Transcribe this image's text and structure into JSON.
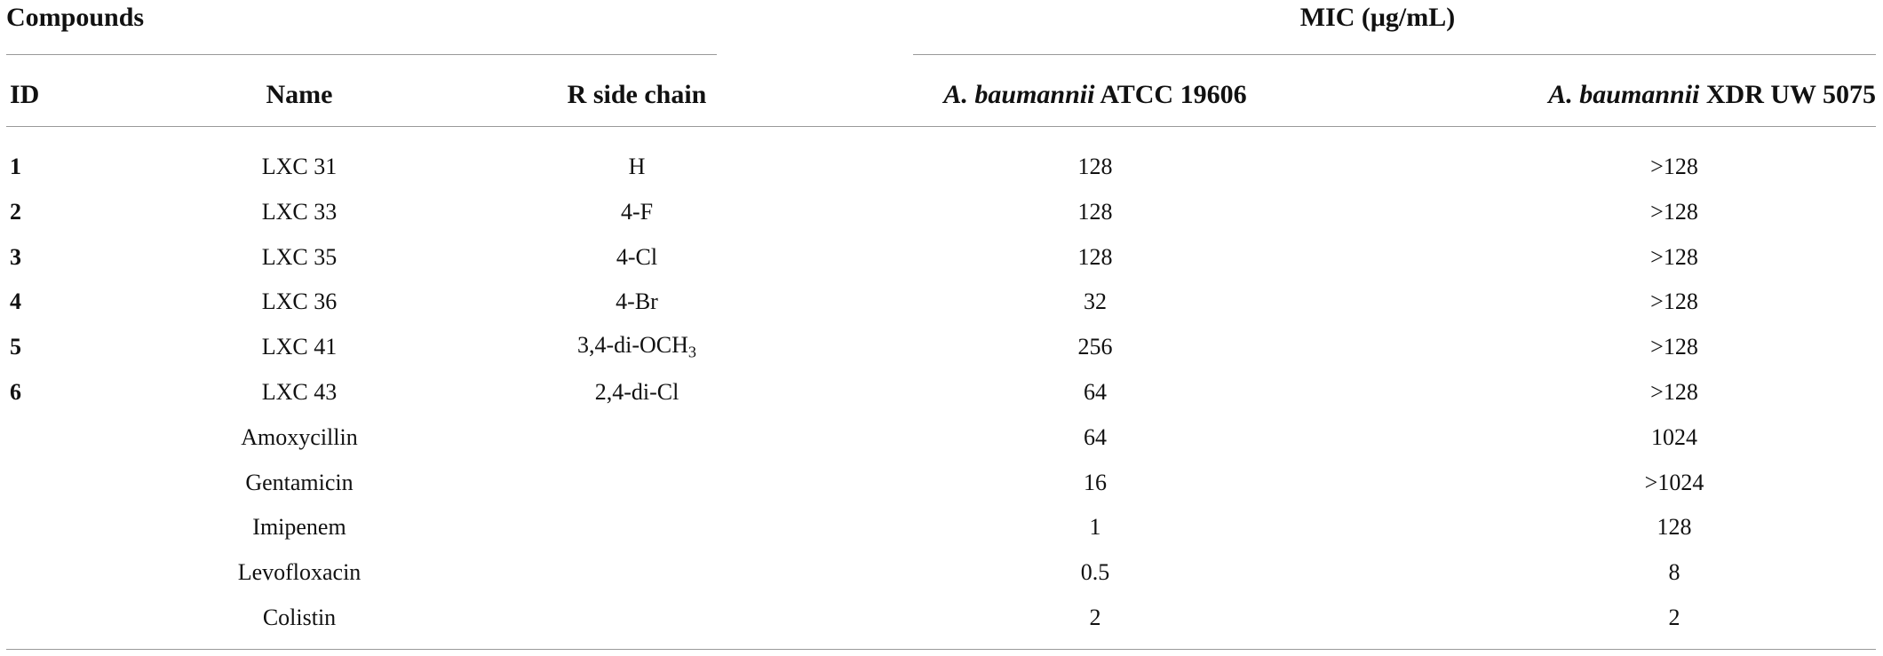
{
  "table": {
    "group_headers": [
      "Compounds",
      "MIC (μg/mL)"
    ],
    "headers": [
      "ID",
      "Name",
      "R side chain",
      {
        "italic": "A. baumannii",
        "text": " ATCC 19606"
      },
      {
        "italic": "A. baumannii",
        "text": " XDR UW 5075"
      }
    ],
    "rows": [
      {
        "id": "1",
        "name": "LXC 31",
        "r": "H",
        "atcc": "128",
        "xdr": ">128"
      },
      {
        "id": "2",
        "name": "LXC 33",
        "r": "4-F",
        "atcc": "128",
        "xdr": ">128"
      },
      {
        "id": "3",
        "name": "LXC 35",
        "r": "4-Cl",
        "atcc": "128",
        "xdr": ">128"
      },
      {
        "id": "4",
        "name": "LXC 36",
        "r": "4-Br",
        "atcc": "32",
        "xdr": ">128"
      },
      {
        "id": "5",
        "name": "LXC 41",
        "r": {
          "text": "3,4-di-OCH",
          "sub": "3"
        },
        "atcc": "256",
        "xdr": ">128"
      },
      {
        "id": "6",
        "name": "LXC 43",
        "r": "2,4-di-Cl",
        "atcc": "64",
        "xdr": ">128"
      },
      {
        "name": "Amoxycillin",
        "atcc": "64",
        "xdr": "1024"
      },
      {
        "name": "Gentamicin",
        "atcc": "16",
        "xdr": ">1024"
      },
      {
        "name": "Imipenem",
        "atcc": "1",
        "xdr": "128"
      },
      {
        "name": "Levofloxacin",
        "atcc": "0.5",
        "xdr": "8"
      },
      {
        "name": "Colistin",
        "atcc": "2",
        "xdr": "2"
      }
    ]
  }
}
